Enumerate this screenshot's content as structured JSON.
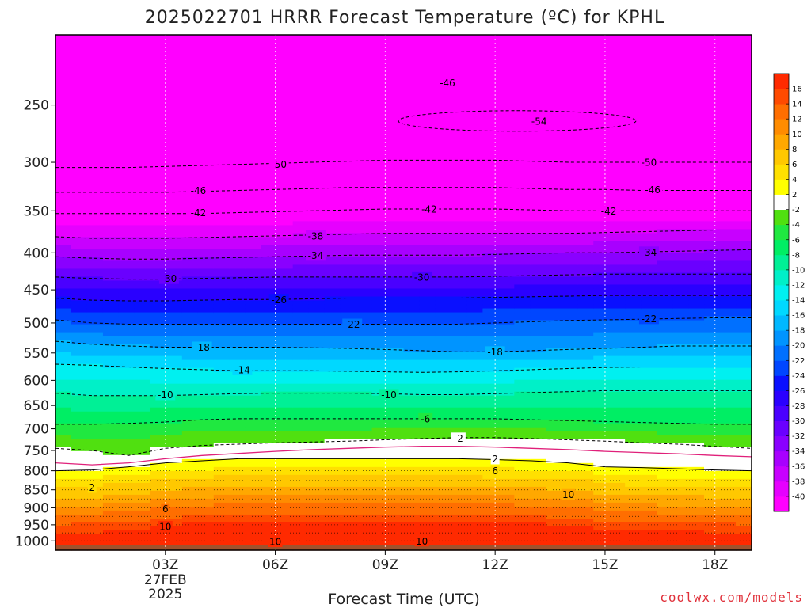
{
  "chart_data": {
    "type": "heatmap",
    "title": "2025022701 HRRR Forecast Temperature (ºC) for KPHL",
    "xlabel": "Forecast Time (UTC)",
    "ylabel": "",
    "x_range_hours": [
      0,
      19
    ],
    "y_range_hpa": [
      1030,
      200
    ],
    "y_scale": "log",
    "grid": true,
    "x_ticks": [
      {
        "hour": 3,
        "label": "03Z",
        "sub1": "27FEB",
        "sub2": "2025"
      },
      {
        "hour": 6,
        "label": "06Z"
      },
      {
        "hour": 9,
        "label": "09Z"
      },
      {
        "hour": 12,
        "label": "12Z"
      },
      {
        "hour": 15,
        "label": "15Z"
      },
      {
        "hour": 18,
        "label": "18Z"
      }
    ],
    "y_ticks": [
      250,
      300,
      350,
      400,
      450,
      500,
      550,
      600,
      650,
      700,
      750,
      800,
      850,
      900,
      950,
      1000
    ],
    "colorbar": {
      "levels": [
        -40,
        -38,
        -36,
        -34,
        -32,
        -30,
        -28,
        -26,
        -24,
        -22,
        -20,
        -18,
        -16,
        -14,
        -12,
        -10,
        -8,
        -6,
        -4,
        -2,
        2,
        4,
        6,
        8,
        10,
        12,
        14,
        16
      ],
      "colors": [
        "#ff00ff",
        "#e600ff",
        "#c800ff",
        "#a800ff",
        "#8a00ff",
        "#6a00ff",
        "#4a00ff",
        "#2a00ff",
        "#0a10ff",
        "#0046ff",
        "#0070ff",
        "#0094ff",
        "#00b8ff",
        "#00d8ff",
        "#00f0f0",
        "#00f0c8",
        "#00f096",
        "#00ee64",
        "#20e840",
        "#50e010",
        "#ffffff",
        "#ffff00",
        "#ffe000",
        "#ffc800",
        "#ffa800",
        "#ff8c00",
        "#ff6e00",
        "#ff4a00",
        "#ff2a00"
      ]
    },
    "isotherms_hpa": [
      {
        "t": 2,
        "p": [
          800,
          798,
          790,
          780,
          775,
          770,
          770,
          770,
          770,
          770,
          770,
          770,
          772,
          775,
          780,
          790,
          792,
          795,
          798,
          800
        ]
      },
      {
        "t": 0,
        "p": [
          780,
          785,
          780,
          770,
          762,
          757,
          752,
          748,
          745,
          742,
          740,
          740,
          742,
          745,
          748,
          752,
          755,
          758,
          762,
          765
        ]
      },
      {
        "t": -2,
        "p": [
          745,
          750,
          762,
          745,
          738,
          735,
          732,
          730,
          728,
          725,
          722,
          720,
          720,
          722,
          725,
          728,
          732,
          735,
          740,
          745
        ]
      },
      {
        "t": -6,
        "p": [
          690,
          690,
          688,
          685,
          680,
          678,
          678,
          678,
          678,
          678,
          678,
          678,
          678,
          680,
          682,
          684,
          686,
          688,
          690,
          690
        ]
      },
      {
        "t": -10,
        "p": [
          625,
          630,
          630,
          630,
          628,
          626,
          625,
          625,
          625,
          626,
          628,
          628,
          626,
          624,
          622,
          620,
          620,
          620,
          620,
          620
        ]
      },
      {
        "t": -14,
        "p": [
          570,
          572,
          575,
          578,
          580,
          582,
          582,
          582,
          583,
          584,
          585,
          584,
          582,
          580,
          578,
          576,
          575,
          575,
          575,
          575
        ]
      },
      {
        "t": -18,
        "p": [
          530,
          535,
          538,
          540,
          540,
          540,
          540,
          541,
          542,
          544,
          546,
          548,
          548,
          546,
          544,
          542,
          540,
          538,
          538,
          538
        ]
      },
      {
        "t": -22,
        "p": [
          495,
          500,
          502,
          502,
          502,
          502,
          502,
          502,
          502,
          502,
          502,
          502,
          500,
          498,
          496,
          495,
          494,
          493,
          492,
          492
        ]
      },
      {
        "t": -26,
        "p": [
          462,
          465,
          466,
          466,
          465,
          464,
          464,
          463,
          462,
          462,
          462,
          462,
          461,
          460,
          459,
          458,
          458,
          458,
          458,
          458
        ]
      },
      {
        "t": -30,
        "p": [
          432,
          434,
          435,
          435,
          434,
          433,
          432,
          432,
          432,
          432,
          432,
          432,
          431,
          430,
          429,
          428,
          428,
          428,
          428,
          428
        ]
      },
      {
        "t": -34,
        "p": [
          405,
          407,
          408,
          408,
          407,
          406,
          405,
          404,
          403,
          403,
          403,
          403,
          402,
          401,
          400,
          400,
          399,
          398,
          397,
          396
        ]
      },
      {
        "t": -38,
        "p": [
          380,
          382,
          382,
          382,
          381,
          380,
          379,
          378,
          377,
          376,
          376,
          376,
          376,
          376,
          376,
          375,
          374,
          373,
          372,
          372
        ]
      },
      {
        "t": -42,
        "p": [
          353,
          353,
          353,
          353,
          353,
          352,
          351,
          350,
          349,
          348,
          348,
          348,
          348,
          349,
          350,
          350,
          350,
          350,
          350,
          350
        ]
      },
      {
        "t": -46,
        "p": [
          330,
          330,
          330,
          330,
          329,
          328,
          327,
          326,
          325,
          325,
          325,
          325,
          325,
          326,
          327,
          327,
          328,
          328,
          328,
          328
        ]
      },
      {
        "t": -50,
        "p": [
          305,
          305,
          305,
          304,
          303,
          302,
          301,
          300,
          299,
          298,
          298,
          298,
          298,
          299,
          300,
          300,
          300,
          300,
          300,
          300
        ]
      }
    ],
    "contour_labels": [
      {
        "text": "-46",
        "hour": 10.7,
        "p": 233
      },
      {
        "text": "-54",
        "hour": 13.2,
        "p": 263
      },
      {
        "text": "-50",
        "hour": 6.1,
        "p": 302
      },
      {
        "text": "-50",
        "hour": 16.2,
        "p": 300
      },
      {
        "text": "-46",
        "hour": 3.9,
        "p": 328
      },
      {
        "text": "-46",
        "hour": 16.3,
        "p": 327
      },
      {
        "text": "-42",
        "hour": 3.9,
        "p": 352
      },
      {
        "text": "-42",
        "hour": 10.2,
        "p": 348
      },
      {
        "text": "-42",
        "hour": 15.1,
        "p": 350
      },
      {
        "text": "-38",
        "hour": 7.1,
        "p": 379
      },
      {
        "text": "-34",
        "hour": 7.1,
        "p": 403
      },
      {
        "text": "-34",
        "hour": 16.2,
        "p": 399
      },
      {
        "text": "-30",
        "hour": 3.1,
        "p": 434
      },
      {
        "text": "-30",
        "hour": 10.0,
        "p": 432
      },
      {
        "text": "-26",
        "hour": 6.1,
        "p": 464
      },
      {
        "text": "-22",
        "hour": 8.1,
        "p": 502
      },
      {
        "text": "-22",
        "hour": 16.2,
        "p": 493
      },
      {
        "text": "-18",
        "hour": 4.0,
        "p": 540
      },
      {
        "text": "-18",
        "hour": 12.0,
        "p": 548
      },
      {
        "text": "-14",
        "hour": 5.1,
        "p": 580
      },
      {
        "text": "-10",
        "hour": 3.0,
        "p": 628
      },
      {
        "text": "-10",
        "hour": 9.1,
        "p": 628
      },
      {
        "text": "-6",
        "hour": 10.1,
        "p": 678
      },
      {
        "text": "-2",
        "hour": 11.0,
        "p": 721
      },
      {
        "text": "2",
        "hour": 12.0,
        "p": 770
      },
      {
        "text": "6",
        "hour": 12.0,
        "p": 800
      },
      {
        "text": "10",
        "hour": 14.0,
        "p": 863
      },
      {
        "text": "2",
        "hour": 1.0,
        "p": 843
      },
      {
        "text": "6",
        "hour": 3.0,
        "p": 903
      },
      {
        "text": "10",
        "hour": 3.0,
        "p": 955
      },
      {
        "text": "10",
        "hour": 6.0,
        "p": 1002
      },
      {
        "text": "10",
        "hour": 10.0,
        "p": 1000
      }
    ]
  },
  "credit": "coolwx.com/models"
}
